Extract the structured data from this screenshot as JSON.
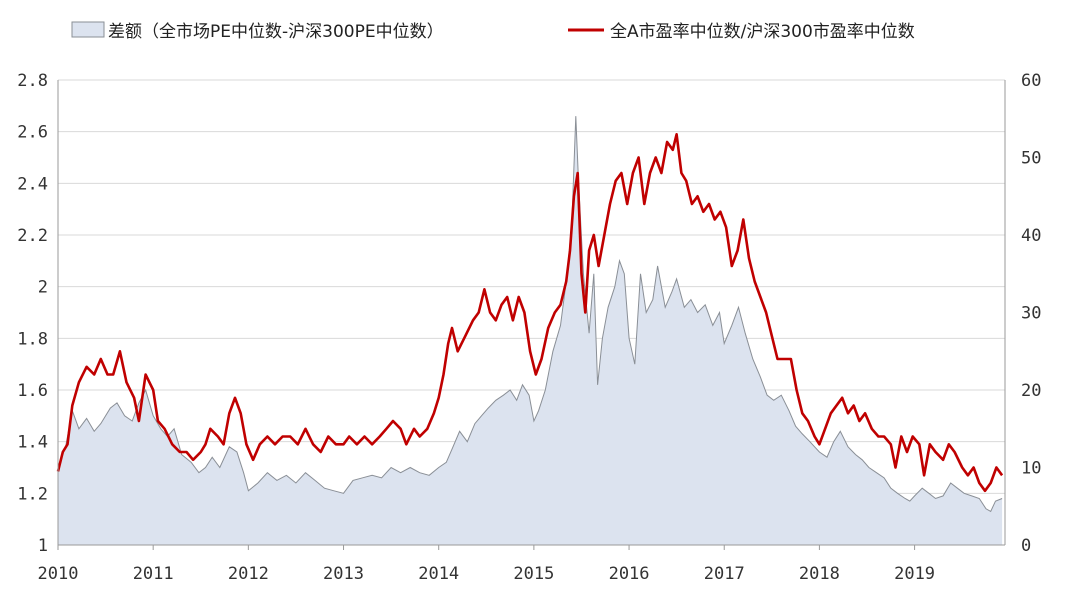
{
  "chart_data": {
    "type": "area",
    "series": [
      {
        "name": "差额（全市场PE中位数-沪深300PE中位数）",
        "type": "area",
        "axis": "left",
        "color": "#dce3ef",
        "stroke": "#8a8f96",
        "points": [
          [
            2010.0,
            1.3
          ],
          [
            2010.08,
            1.38
          ],
          [
            2010.15,
            1.52
          ],
          [
            2010.22,
            1.45
          ],
          [
            2010.3,
            1.49
          ],
          [
            2010.38,
            1.44
          ],
          [
            2010.45,
            1.47
          ],
          [
            2010.55,
            1.53
          ],
          [
            2010.62,
            1.55
          ],
          [
            2010.7,
            1.5
          ],
          [
            2010.78,
            1.48
          ],
          [
            2010.85,
            1.55
          ],
          [
            2010.92,
            1.6
          ],
          [
            2011.0,
            1.5
          ],
          [
            2011.08,
            1.45
          ],
          [
            2011.15,
            1.42
          ],
          [
            2011.22,
            1.45
          ],
          [
            2011.3,
            1.35
          ],
          [
            2011.4,
            1.32
          ],
          [
            2011.48,
            1.28
          ],
          [
            2011.55,
            1.3
          ],
          [
            2011.62,
            1.34
          ],
          [
            2011.7,
            1.3
          ],
          [
            2011.8,
            1.38
          ],
          [
            2011.88,
            1.36
          ],
          [
            2011.95,
            1.28
          ],
          [
            2012.0,
            1.21
          ],
          [
            2012.1,
            1.24
          ],
          [
            2012.2,
            1.28
          ],
          [
            2012.3,
            1.25
          ],
          [
            2012.4,
            1.27
          ],
          [
            2012.5,
            1.24
          ],
          [
            2012.6,
            1.28
          ],
          [
            2012.7,
            1.25
          ],
          [
            2012.8,
            1.22
          ],
          [
            2012.9,
            1.21
          ],
          [
            2013.0,
            1.2
          ],
          [
            2013.1,
            1.25
          ],
          [
            2013.2,
            1.26
          ],
          [
            2013.3,
            1.27
          ],
          [
            2013.4,
            1.26
          ],
          [
            2013.5,
            1.3
          ],
          [
            2013.6,
            1.28
          ],
          [
            2013.7,
            1.3
          ],
          [
            2013.8,
            1.28
          ],
          [
            2013.9,
            1.27
          ],
          [
            2014.0,
            1.3
          ],
          [
            2014.08,
            1.32
          ],
          [
            2014.15,
            1.38
          ],
          [
            2014.22,
            1.44
          ],
          [
            2014.3,
            1.4
          ],
          [
            2014.38,
            1.47
          ],
          [
            2014.45,
            1.5
          ],
          [
            2014.52,
            1.53
          ],
          [
            2014.6,
            1.56
          ],
          [
            2014.68,
            1.58
          ],
          [
            2014.75,
            1.6
          ],
          [
            2014.82,
            1.56
          ],
          [
            2014.88,
            1.62
          ],
          [
            2014.95,
            1.58
          ],
          [
            2015.0,
            1.48
          ],
          [
            2015.05,
            1.52
          ],
          [
            2015.12,
            1.6
          ],
          [
            2015.2,
            1.75
          ],
          [
            2015.28,
            1.85
          ],
          [
            2015.35,
            2.05
          ],
          [
            2015.4,
            2.25
          ],
          [
            2015.44,
            2.66
          ],
          [
            2015.47,
            2.4
          ],
          [
            2015.52,
            2.05
          ],
          [
            2015.58,
            1.82
          ],
          [
            2015.63,
            2.05
          ],
          [
            2015.67,
            1.62
          ],
          [
            2015.72,
            1.8
          ],
          [
            2015.78,
            1.92
          ],
          [
            2015.85,
            2.0
          ],
          [
            2015.9,
            2.1
          ],
          [
            2015.95,
            2.05
          ],
          [
            2016.0,
            1.8
          ],
          [
            2016.06,
            1.7
          ],
          [
            2016.12,
            2.05
          ],
          [
            2016.18,
            1.9
          ],
          [
            2016.25,
            1.95
          ],
          [
            2016.3,
            2.08
          ],
          [
            2016.38,
            1.92
          ],
          [
            2016.45,
            1.98
          ],
          [
            2016.5,
            2.03
          ],
          [
            2016.58,
            1.92
          ],
          [
            2016.65,
            1.95
          ],
          [
            2016.72,
            1.9
          ],
          [
            2016.8,
            1.93
          ],
          [
            2016.88,
            1.85
          ],
          [
            2016.95,
            1.9
          ],
          [
            2017.0,
            1.78
          ],
          [
            2017.08,
            1.85
          ],
          [
            2017.15,
            1.92
          ],
          [
            2017.22,
            1.82
          ],
          [
            2017.3,
            1.72
          ],
          [
            2017.38,
            1.65
          ],
          [
            2017.45,
            1.58
          ],
          [
            2017.52,
            1.56
          ],
          [
            2017.6,
            1.58
          ],
          [
            2017.68,
            1.52
          ],
          [
            2017.75,
            1.46
          ],
          [
            2017.82,
            1.43
          ],
          [
            2017.9,
            1.4
          ],
          [
            2017.95,
            1.38
          ],
          [
            2018.0,
            1.36
          ],
          [
            2018.08,
            1.34
          ],
          [
            2018.15,
            1.4
          ],
          [
            2018.22,
            1.44
          ],
          [
            2018.3,
            1.38
          ],
          [
            2018.38,
            1.35
          ],
          [
            2018.45,
            1.33
          ],
          [
            2018.52,
            1.3
          ],
          [
            2018.6,
            1.28
          ],
          [
            2018.68,
            1.26
          ],
          [
            2018.75,
            1.22
          ],
          [
            2018.82,
            1.2
          ],
          [
            2018.9,
            1.18
          ],
          [
            2018.95,
            1.17
          ],
          [
            2019.0,
            1.19
          ],
          [
            2019.08,
            1.22
          ],
          [
            2019.15,
            1.2
          ],
          [
            2019.22,
            1.18
          ],
          [
            2019.3,
            1.19
          ],
          [
            2019.38,
            1.24
          ],
          [
            2019.45,
            1.22
          ],
          [
            2019.52,
            1.2
          ],
          [
            2019.6,
            1.19
          ],
          [
            2019.68,
            1.18
          ],
          [
            2019.75,
            1.14
          ],
          [
            2019.8,
            1.13
          ],
          [
            2019.85,
            1.17
          ],
          [
            2019.92,
            1.18
          ]
        ]
      },
      {
        "name": "全A市盈率中位数/沪深300市盈率中位数",
        "type": "line",
        "axis": "right",
        "color": "#c00000",
        "points": [
          [
            2010.0,
            9.5
          ],
          [
            2010.05,
            12
          ],
          [
            2010.1,
            13
          ],
          [
            2010.15,
            18
          ],
          [
            2010.22,
            21
          ],
          [
            2010.3,
            23
          ],
          [
            2010.38,
            22
          ],
          [
            2010.45,
            24
          ],
          [
            2010.52,
            22
          ],
          [
            2010.58,
            22
          ],
          [
            2010.65,
            25
          ],
          [
            2010.72,
            21
          ],
          [
            2010.8,
            19
          ],
          [
            2010.85,
            16
          ],
          [
            2010.92,
            22
          ],
          [
            2011.0,
            20
          ],
          [
            2011.05,
            16
          ],
          [
            2011.12,
            15
          ],
          [
            2011.2,
            13
          ],
          [
            2011.28,
            12
          ],
          [
            2011.35,
            12
          ],
          [
            2011.42,
            11
          ],
          [
            2011.5,
            12
          ],
          [
            2011.55,
            13
          ],
          [
            2011.6,
            15
          ],
          [
            2011.68,
            14
          ],
          [
            2011.74,
            13
          ],
          [
            2011.8,
            17
          ],
          [
            2011.86,
            19
          ],
          [
            2011.92,
            17
          ],
          [
            2011.98,
            13
          ],
          [
            2012.05,
            11
          ],
          [
            2012.12,
            13
          ],
          [
            2012.2,
            14
          ],
          [
            2012.28,
            13
          ],
          [
            2012.36,
            14
          ],
          [
            2012.44,
            14
          ],
          [
            2012.52,
            13
          ],
          [
            2012.6,
            15
          ],
          [
            2012.68,
            13
          ],
          [
            2012.76,
            12
          ],
          [
            2012.84,
            14
          ],
          [
            2012.92,
            13
          ],
          [
            2013.0,
            13
          ],
          [
            2013.06,
            14
          ],
          [
            2013.14,
            13
          ],
          [
            2013.22,
            14
          ],
          [
            2013.3,
            13
          ],
          [
            2013.38,
            14
          ],
          [
            2013.45,
            15
          ],
          [
            2013.52,
            16
          ],
          [
            2013.6,
            15
          ],
          [
            2013.66,
            13
          ],
          [
            2013.74,
            15
          ],
          [
            2013.8,
            14
          ],
          [
            2013.88,
            15
          ],
          [
            2013.95,
            17
          ],
          [
            2014.0,
            19
          ],
          [
            2014.05,
            22
          ],
          [
            2014.1,
            26
          ],
          [
            2014.14,
            28
          ],
          [
            2014.2,
            25
          ],
          [
            2014.28,
            27
          ],
          [
            2014.36,
            29
          ],
          [
            2014.42,
            30
          ],
          [
            2014.48,
            33
          ],
          [
            2014.54,
            30
          ],
          [
            2014.6,
            29
          ],
          [
            2014.66,
            31
          ],
          [
            2014.72,
            32
          ],
          [
            2014.78,
            29
          ],
          [
            2014.84,
            32
          ],
          [
            2014.9,
            30
          ],
          [
            2014.96,
            25
          ],
          [
            2015.02,
            22
          ],
          [
            2015.08,
            24
          ],
          [
            2015.15,
            28
          ],
          [
            2015.22,
            30
          ],
          [
            2015.28,
            31
          ],
          [
            2015.34,
            34
          ],
          [
            2015.38,
            38
          ],
          [
            2015.42,
            45
          ],
          [
            2015.46,
            48
          ],
          [
            2015.5,
            35
          ],
          [
            2015.54,
            30
          ],
          [
            2015.58,
            38
          ],
          [
            2015.63,
            40
          ],
          [
            2015.68,
            36
          ],
          [
            2015.74,
            40
          ],
          [
            2015.8,
            44
          ],
          [
            2015.86,
            47
          ],
          [
            2015.92,
            48
          ],
          [
            2015.98,
            44
          ],
          [
            2016.04,
            48
          ],
          [
            2016.1,
            50
          ],
          [
            2016.16,
            44
          ],
          [
            2016.22,
            48
          ],
          [
            2016.28,
            50
          ],
          [
            2016.34,
            48
          ],
          [
            2016.4,
            52
          ],
          [
            2016.46,
            51
          ],
          [
            2016.5,
            53
          ],
          [
            2016.55,
            48
          ],
          [
            2016.6,
            47
          ],
          [
            2016.66,
            44
          ],
          [
            2016.72,
            45
          ],
          [
            2016.78,
            43
          ],
          [
            2016.84,
            44
          ],
          [
            2016.9,
            42
          ],
          [
            2016.96,
            43
          ],
          [
            2017.02,
            41
          ],
          [
            2017.08,
            36
          ],
          [
            2017.14,
            38
          ],
          [
            2017.2,
            42
          ],
          [
            2017.26,
            37
          ],
          [
            2017.32,
            34
          ],
          [
            2017.38,
            32
          ],
          [
            2017.44,
            30
          ],
          [
            2017.5,
            27
          ],
          [
            2017.56,
            24
          ],
          [
            2017.62,
            24
          ],
          [
            2017.7,
            24
          ],
          [
            2017.76,
            20
          ],
          [
            2017.82,
            17
          ],
          [
            2017.88,
            16
          ],
          [
            2017.95,
            14
          ],
          [
            2018.0,
            13
          ],
          [
            2018.06,
            15
          ],
          [
            2018.12,
            17
          ],
          [
            2018.18,
            18
          ],
          [
            2018.24,
            19
          ],
          [
            2018.3,
            17
          ],
          [
            2018.36,
            18
          ],
          [
            2018.42,
            16
          ],
          [
            2018.48,
            17
          ],
          [
            2018.55,
            15
          ],
          [
            2018.62,
            14
          ],
          [
            2018.68,
            14
          ],
          [
            2018.75,
            13
          ],
          [
            2018.8,
            10
          ],
          [
            2018.86,
            14
          ],
          [
            2018.92,
            12
          ],
          [
            2018.98,
            14
          ],
          [
            2019.05,
            13
          ],
          [
            2019.1,
            9
          ],
          [
            2019.16,
            13
          ],
          [
            2019.22,
            12
          ],
          [
            2019.3,
            11
          ],
          [
            2019.36,
            13
          ],
          [
            2019.42,
            12
          ],
          [
            2019.5,
            10
          ],
          [
            2019.56,
            9
          ],
          [
            2019.62,
            10
          ],
          [
            2019.68,
            8
          ],
          [
            2019.74,
            7
          ],
          [
            2019.8,
            8
          ],
          [
            2019.86,
            10
          ],
          [
            2019.92,
            9
          ]
        ]
      }
    ],
    "x_ticks": [
      "2010",
      "2011",
      "2012",
      "2013",
      "2014",
      "2015",
      "2016",
      "2017",
      "2018",
      "2019"
    ],
    "x_range": [
      2010,
      2019.95
    ],
    "y_left": {
      "min": 1,
      "max": 2.8,
      "ticks": [
        "1",
        "1.2",
        "1.4",
        "1.6",
        "1.8",
        "2",
        "2.2",
        "2.4",
        "2.6",
        "2.8"
      ]
    },
    "y_right": {
      "min": 0,
      "max": 60,
      "ticks": [
        "0",
        "10",
        "20",
        "30",
        "40",
        "50",
        "60"
      ]
    },
    "grid": "horizontal",
    "legend_position": "top-center"
  }
}
